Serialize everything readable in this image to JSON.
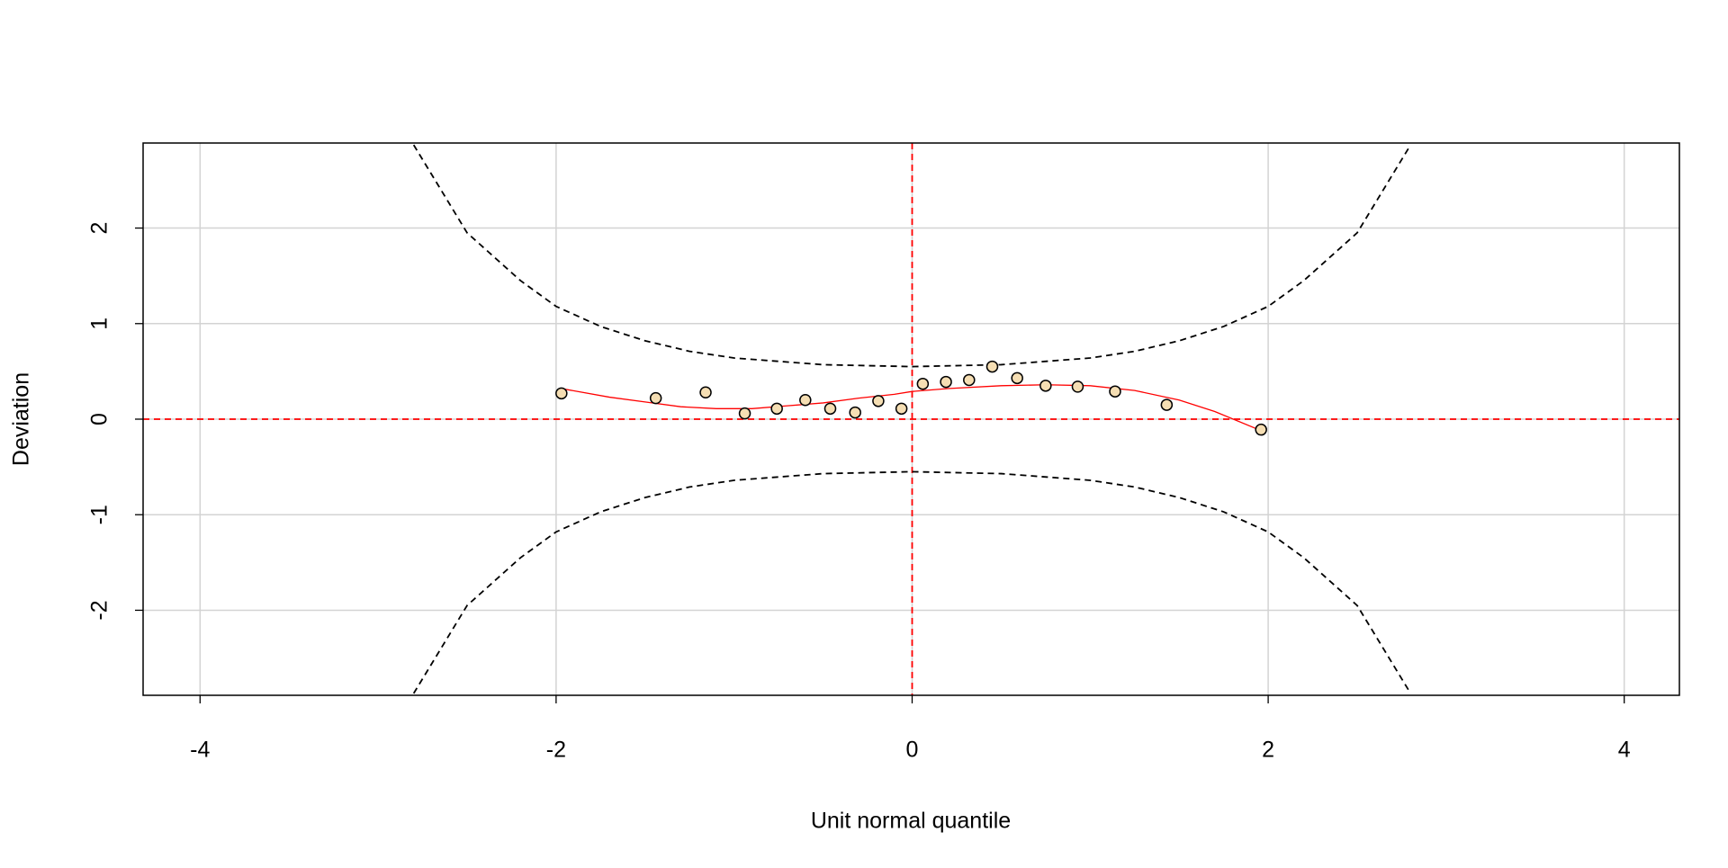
{
  "chart_data": {
    "type": "scatter",
    "xlabel": "Unit normal quantile",
    "ylabel": "Deviation",
    "xlim": [
      -4.32,
      4.31
    ],
    "ylim": [
      -2.89,
      2.89
    ],
    "xticks": [
      -4,
      -2,
      0,
      2,
      4
    ],
    "yticks": [
      -2,
      -1,
      0,
      1,
      2
    ],
    "grid": true,
    "hline": 0,
    "vline": 0,
    "ref_color": "#ff0000",
    "series": [
      {
        "type": "scatter",
        "color": "#f5deb3",
        "x": [
          -1.97,
          -1.44,
          -1.16,
          -0.94,
          -0.76,
          -0.6,
          -0.46,
          -0.32,
          -0.19,
          -0.06,
          0.06,
          0.19,
          0.32,
          0.45,
          0.59,
          0.75,
          0.93,
          1.14,
          1.43,
          1.96
        ],
        "values": [
          0.27,
          0.22,
          0.28,
          0.06,
          0.11,
          0.2,
          0.11,
          0.07,
          0.19,
          0.11,
          0.37,
          0.39,
          0.41,
          0.55,
          0.43,
          0.35,
          0.34,
          0.29,
          0.15,
          -0.11
        ]
      },
      {
        "type": "line",
        "color": "#ff0000",
        "x": [
          -1.97,
          -1.7,
          -1.5,
          -1.3,
          -1.1,
          -0.9,
          -0.7,
          -0.5,
          -0.3,
          -0.1,
          0,
          0.2,
          0.5,
          0.75,
          1.0,
          1.25,
          1.5,
          1.7,
          1.96
        ],
        "values": [
          0.32,
          0.23,
          0.18,
          0.13,
          0.11,
          0.11,
          0.14,
          0.17,
          0.22,
          0.26,
          0.29,
          0.32,
          0.35,
          0.36,
          0.35,
          0.3,
          0.2,
          0.08,
          -0.12
        ]
      },
      {
        "type": "line",
        "color": "#000000",
        "dash": true,
        "x": [
          -2.8,
          -2.5,
          -2.2,
          -2,
          -1.75,
          -1.5,
          -1.25,
          -1,
          -0.5,
          0,
          0.5,
          1,
          1.25,
          1.5,
          1.75,
          2,
          2.2,
          2.5,
          2.8
        ],
        "values": [
          2.87,
          1.95,
          1.45,
          1.18,
          0.97,
          0.82,
          0.71,
          0.64,
          0.57,
          0.55,
          0.57,
          0.64,
          0.71,
          0.82,
          0.97,
          1.18,
          1.45,
          1.95,
          2.87
        ]
      },
      {
        "type": "line",
        "color": "#000000",
        "dash": true,
        "x": [
          -2.8,
          -2.5,
          -2.2,
          -2,
          -1.75,
          -1.5,
          -1.25,
          -1,
          -0.5,
          0,
          0.5,
          1,
          1.25,
          1.5,
          1.75,
          2,
          2.2,
          2.5,
          2.8
        ],
        "values": [
          -2.87,
          -1.95,
          -1.45,
          -1.18,
          -0.97,
          -0.82,
          -0.71,
          -0.64,
          -0.57,
          -0.55,
          -0.57,
          -0.64,
          -0.71,
          -0.82,
          -0.97,
          -1.18,
          -1.45,
          -1.95,
          -2.87
        ]
      }
    ]
  }
}
